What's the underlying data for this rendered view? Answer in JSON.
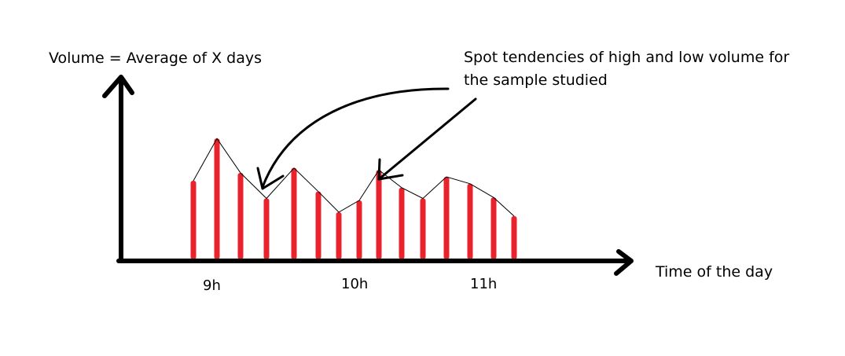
{
  "chart_data": {
    "type": "bar",
    "title": "",
    "ylabel": "Volume = Average of X days",
    "xlabel": "Time of the day",
    "x_ticks": [
      "9h",
      "10h",
      "11h"
    ],
    "values": [
      80,
      123,
      88,
      62,
      93,
      69,
      48,
      60,
      91,
      73,
      62,
      84,
      77,
      63,
      44
    ],
    "ylim": [
      0,
      200
    ],
    "bar_color": "#e8232c",
    "line_color": "#000000",
    "annotations": [
      {
        "lines": [
          "Spot tendencies of high and low volume for",
          "the sample studied"
        ]
      }
    ]
  }
}
